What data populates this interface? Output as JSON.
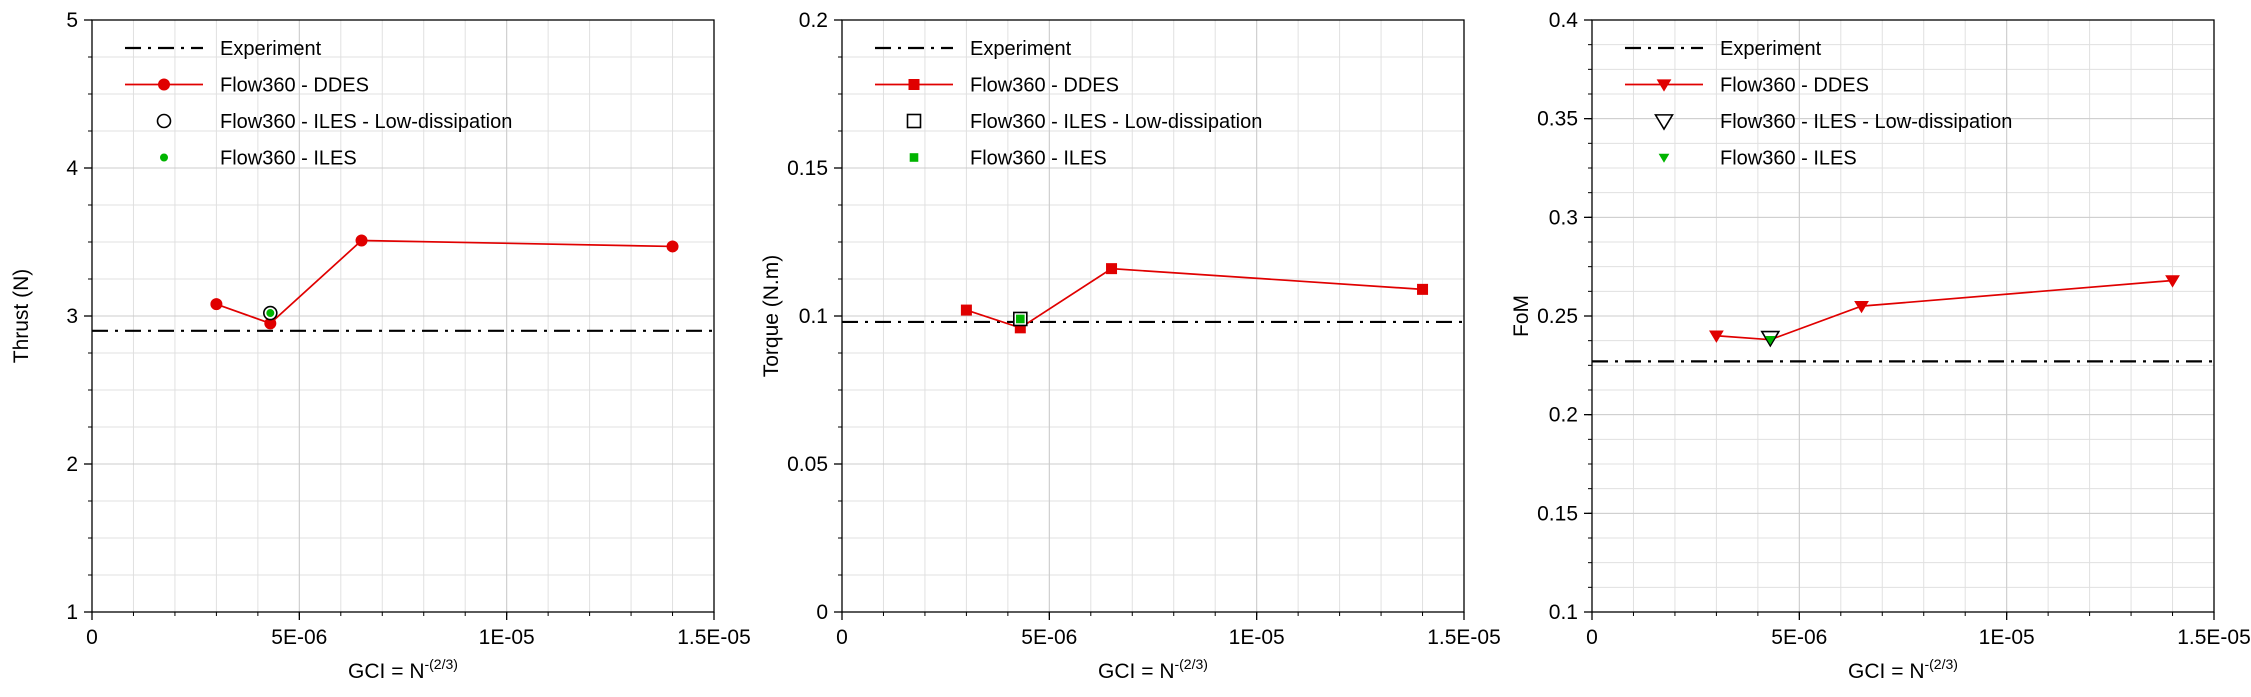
{
  "figure": {
    "background": "#ffffff",
    "type": "grid-convergence-study",
    "n_subplots": 3
  },
  "colors": {
    "experiment": "#000000",
    "ddes": "#e00000",
    "iles_low_dissipation": "#000000",
    "iles": "#00b400",
    "grid_minor": "#e0e0e0",
    "grid_major": "#cccccc",
    "axis": "#000000"
  },
  "legend_labels": [
    "Experiment",
    "Flow360 - DDES",
    "Flow360 - ILES - Low-dissipation",
    "Flow360 - ILES"
  ],
  "xlabel": {
    "base": "GCI = N",
    "sup": "-(2/3)"
  },
  "x_ticks": {
    "values": [
      0,
      5e-06,
      1e-05,
      1.5e-05
    ],
    "labels": [
      "0",
      "5E-06",
      "1E-05",
      "1.5E-05"
    ]
  },
  "chart_data": [
    {
      "type": "line",
      "title": "",
      "ylabel": "Thrust (N)",
      "xlabel": "GCI = N^-(2/3)",
      "xlim": [
        0,
        1.5e-05
      ],
      "ylim": [
        1,
        5
      ],
      "x_minor_step": 1e-06,
      "y_minor_step": 0.25,
      "y_ticks": {
        "values": [
          1,
          2,
          3,
          4,
          5
        ],
        "labels": [
          "1",
          "2",
          "3",
          "4",
          "5"
        ]
      },
      "grid": true,
      "legend_position": "top-left-inside",
      "marker": "circle",
      "experiment": {
        "label": "Experiment",
        "y": 2.9,
        "line_style": "dash-dot"
      },
      "series": [
        {
          "name": "Flow360 - DDES",
          "role": "main",
          "style": "line+marker",
          "color": "#e00000",
          "x": [
            3e-06,
            4.3e-06,
            6.5e-06,
            1.4e-05
          ],
          "y": [
            3.08,
            2.95,
            3.51,
            3.47
          ]
        },
        {
          "name": "Flow360 - ILES - Low-dissipation",
          "role": "open",
          "style": "marker",
          "color": "#000000",
          "x": [
            4.3e-06
          ],
          "y": [
            3.02
          ]
        },
        {
          "name": "Flow360 - ILES",
          "role": "small",
          "style": "marker",
          "color": "#00b400",
          "x": [
            4.3e-06
          ],
          "y": [
            3.02
          ]
        }
      ]
    },
    {
      "type": "line",
      "title": "",
      "ylabel": "Torque (N.m)",
      "xlabel": "GCI = N^-(2/3)",
      "xlim": [
        0,
        1.5e-05
      ],
      "ylim": [
        0,
        0.2
      ],
      "x_minor_step": 1e-06,
      "y_minor_step": 0.0125,
      "y_ticks": {
        "values": [
          0,
          0.05,
          0.1,
          0.15,
          0.2
        ],
        "labels": [
          "0",
          "0.05",
          "0.1",
          "0.15",
          "0.2"
        ]
      },
      "grid": true,
      "legend_position": "top-left-inside",
      "marker": "square",
      "experiment": {
        "label": "Experiment",
        "y": 0.098,
        "line_style": "dash-dot"
      },
      "series": [
        {
          "name": "Flow360 - DDES",
          "role": "main",
          "style": "line+marker",
          "color": "#e00000",
          "x": [
            3e-06,
            4.3e-06,
            6.5e-06,
            1.4e-05
          ],
          "y": [
            0.102,
            0.096,
            0.116,
            0.109
          ]
        },
        {
          "name": "Flow360 - ILES - Low-dissipation",
          "role": "open",
          "style": "marker",
          "color": "#000000",
          "x": [
            4.3e-06
          ],
          "y": [
            0.099
          ]
        },
        {
          "name": "Flow360 - ILES",
          "role": "small",
          "style": "marker",
          "color": "#00b400",
          "x": [
            4.3e-06
          ],
          "y": [
            0.099
          ]
        }
      ]
    },
    {
      "type": "line",
      "title": "",
      "ylabel": "FoM",
      "xlabel": "GCI = N^-(2/3)",
      "xlim": [
        0,
        1.5e-05
      ],
      "ylim": [
        0.1,
        0.4
      ],
      "x_minor_step": 1e-06,
      "y_minor_step": 0.0125,
      "y_ticks": {
        "values": [
          0.1,
          0.15,
          0.2,
          0.25,
          0.3,
          0.35,
          0.4
        ],
        "labels": [
          "0.1",
          "0.15",
          "0.2",
          "0.25",
          "0.3",
          "0.35",
          "0.4"
        ]
      },
      "grid": true,
      "legend_position": "top-left-inside",
      "marker": "triangle-down",
      "experiment": {
        "label": "Experiment",
        "y": 0.227,
        "line_style": "dash-dot"
      },
      "series": [
        {
          "name": "Flow360 - DDES",
          "role": "main",
          "style": "line+marker",
          "color": "#e00000",
          "x": [
            3e-06,
            4.3e-06,
            6.5e-06,
            1.4e-05
          ],
          "y": [
            0.24,
            0.238,
            0.255,
            0.268
          ]
        },
        {
          "name": "Flow360 - ILES - Low-dissipation",
          "role": "open",
          "style": "marker",
          "color": "#000000",
          "x": [
            4.3e-06
          ],
          "y": [
            0.239
          ]
        },
        {
          "name": "Flow360 - ILES",
          "role": "small",
          "style": "marker",
          "color": "#00b400",
          "x": [
            4.3e-06
          ],
          "y": [
            0.238
          ]
        }
      ]
    }
  ]
}
